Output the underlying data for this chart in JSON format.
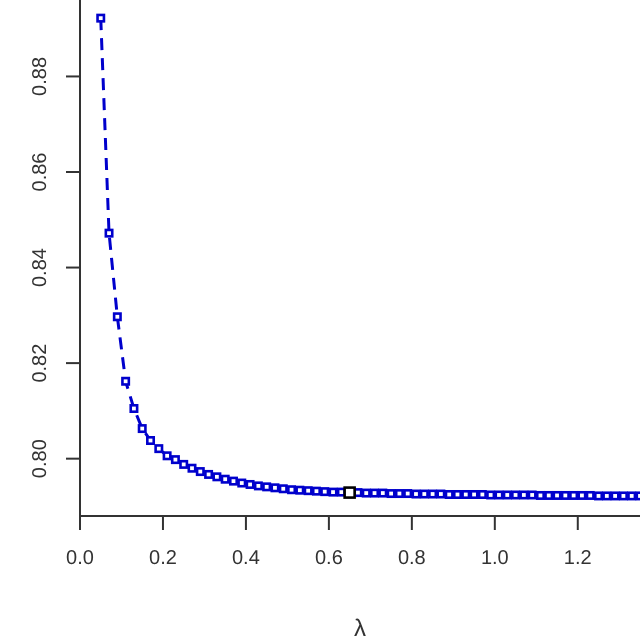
{
  "chart_data": {
    "type": "line",
    "xlabel": "λ",
    "x": [
      0.05,
      0.07,
      0.09,
      0.11,
      0.13,
      0.15,
      0.17,
      0.19,
      0.21,
      0.23,
      0.25,
      0.27,
      0.29,
      0.31,
      0.33,
      0.35,
      0.37,
      0.39,
      0.41,
      0.43,
      0.45,
      0.47,
      0.49,
      0.51,
      0.53,
      0.55,
      0.57,
      0.59,
      0.61,
      0.63,
      0.65,
      0.67,
      0.69,
      0.71,
      0.73,
      0.75,
      0.77,
      0.79,
      0.81,
      0.83,
      0.85,
      0.87,
      0.89,
      0.91,
      0.93,
      0.95,
      0.97,
      0.99,
      1.01,
      1.03,
      1.05,
      1.07,
      1.09,
      1.11,
      1.13,
      1.15,
      1.17,
      1.19,
      1.21,
      1.23,
      1.25,
      1.27,
      1.29,
      1.31,
      1.33,
      1.35
    ],
    "series": [
      {
        "color": "#0000cc",
        "marker": "square",
        "line_style": "dashed",
        "values": [
          0.8922,
          0.8472,
          0.8297,
          0.8162,
          0.8105,
          0.8063,
          0.8038,
          0.8021,
          0.8006,
          0.7998,
          0.7988,
          0.798,
          0.7973,
          0.7967,
          0.7962,
          0.7957,
          0.7953,
          0.7949,
          0.7946,
          0.7943,
          0.7941,
          0.7939,
          0.7937,
          0.7935,
          0.7934,
          0.7933,
          0.7932,
          0.7931,
          0.793,
          0.793,
          0.7929,
          0.7929,
          0.7928,
          0.7928,
          0.7928,
          0.7927,
          0.7927,
          0.7927,
          0.7926,
          0.7926,
          0.7926,
          0.7926,
          0.7925,
          0.7925,
          0.7925,
          0.7925,
          0.7925,
          0.7924,
          0.7924,
          0.7924,
          0.7924,
          0.7924,
          0.7924,
          0.7923,
          0.7923,
          0.7923,
          0.7923,
          0.7923,
          0.7923,
          0.7923,
          0.7922,
          0.7922,
          0.7922,
          0.7922,
          0.7922,
          0.7922
        ]
      },
      {
        "type": "scatter",
        "color": "#000000",
        "marker": "square",
        "x": [
          0.65
        ],
        "values": [
          0.7929
        ]
      }
    ],
    "xlim": [
      0,
      1.35
    ],
    "xticks": [
      {
        "value": 0,
        "label": "0.0"
      },
      0.2,
      0.4,
      0.6,
      0.8,
      {
        "value": 1,
        "label": "1.0"
      },
      1.2
    ],
    "ylim": [
      0.788,
      0.896
    ],
    "yticks": [
      {
        "value": 0.8,
        "label": "0.80"
      },
      0.82,
      0.84,
      0.86,
      0.88
    ],
    "grid": false,
    "legend": false
  }
}
